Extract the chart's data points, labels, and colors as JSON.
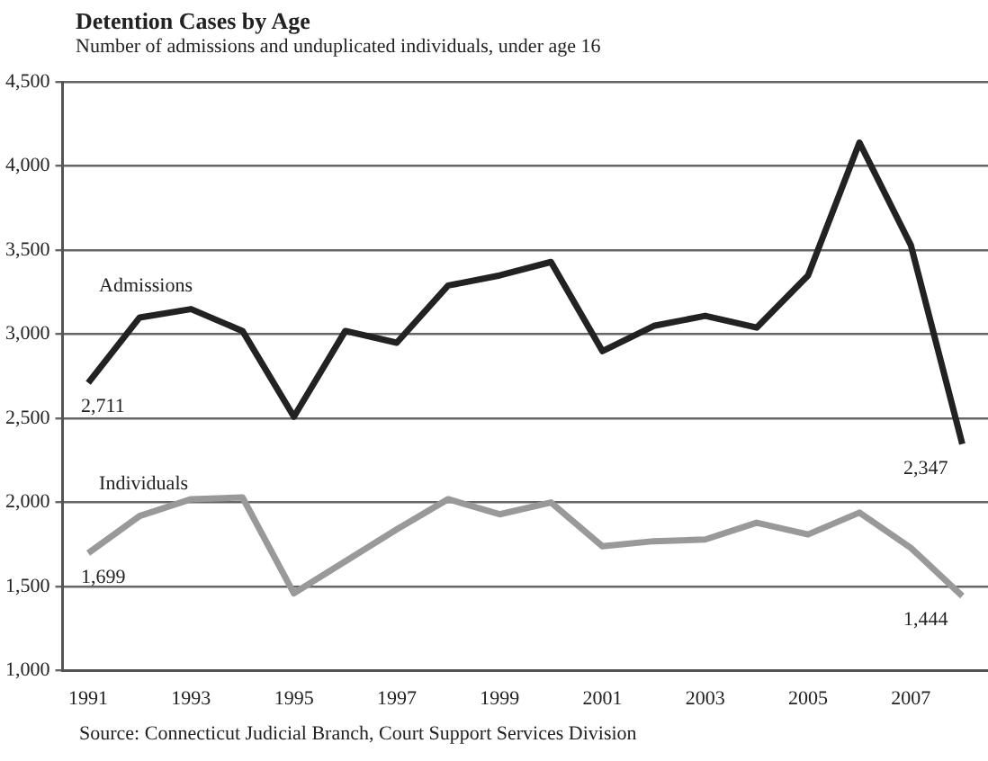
{
  "chart_data": {
    "type": "line",
    "title": "Detention Cases by Age",
    "subtitle": "Number of admissions and unduplicated individuals, under age 16",
    "categories": [
      "1991",
      null,
      "1993",
      null,
      "1995",
      null,
      "1997",
      null,
      "1999",
      null,
      "2001",
      null,
      "2003",
      null,
      "2005",
      null,
      "2007",
      null
    ],
    "series": [
      {
        "name": "Admissions",
        "color": "#222222",
        "values": [
          2711,
          3100,
          3150,
          3020,
          2510,
          3020,
          2950,
          3290,
          3350,
          3430,
          2900,
          3050,
          3110,
          3040,
          3350,
          4140,
          3530,
          2347
        ],
        "value_labels": [
          "2,711",
          null,
          null,
          null,
          null,
          null,
          null,
          null,
          null,
          null,
          null,
          null,
          null,
          null,
          null,
          null,
          null,
          "2,347"
        ]
      },
      {
        "name": "Individuals",
        "color": "#999999",
        "values": [
          1699,
          1920,
          2020,
          2030,
          1460,
          1650,
          1840,
          2020,
          1930,
          2000,
          1740,
          1770,
          1780,
          1880,
          1810,
          1940,
          1730,
          1444
        ],
        "value_labels": [
          "1,699",
          null,
          null,
          null,
          null,
          null,
          null,
          null,
          null,
          null,
          null,
          null,
          null,
          null,
          null,
          null,
          null,
          "1,444"
        ]
      }
    ],
    "ylim": [
      1000,
      4500
    ],
    "yticks": [
      {
        "value": 1000,
        "label": "1,000"
      },
      {
        "value": 1500,
        "label": "1,500"
      },
      {
        "value": 2000,
        "label": "2,000"
      },
      {
        "value": 2500,
        "label": "2,500"
      },
      {
        "value": 3000,
        "label": "3,000"
      },
      {
        "value": 3500,
        "label": "3,500"
      },
      {
        "value": 4000,
        "label": "4,000"
      },
      {
        "value": 4500,
        "label": "4,500"
      }
    ],
    "grid": "y",
    "legend": false,
    "marker": "none",
    "line_style": "solid",
    "annotations": [
      "Source:  Connecticut Judicial Branch, Court Support Services Division"
    ]
  }
}
